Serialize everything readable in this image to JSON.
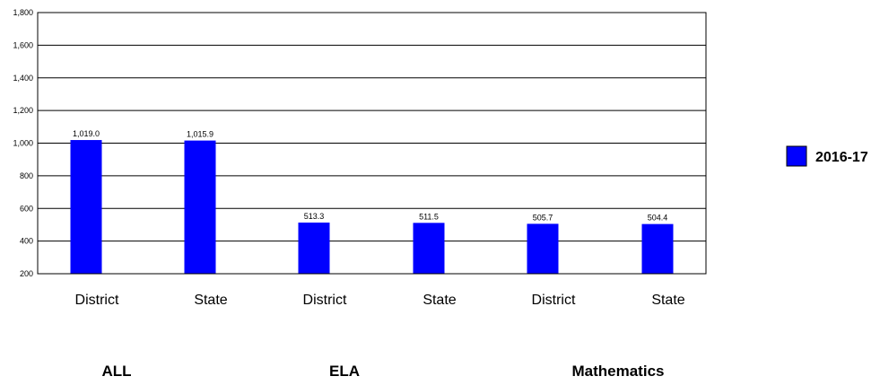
{
  "chart_data": {
    "type": "bar",
    "title": "",
    "xlabel": "",
    "ylabel": "",
    "ylim": [
      200,
      1800
    ],
    "yticks": [
      200,
      400,
      600,
      800,
      1000,
      1200,
      1400,
      1600,
      1800
    ],
    "ytick_labels": [
      "200",
      "400",
      "600",
      "800",
      "1,000",
      "1,200",
      "1,400",
      "1,600",
      "1,800"
    ],
    "grid": "horizontal",
    "legend_position": "right",
    "groups": [
      "ALL",
      "ELA",
      "Mathematics"
    ],
    "categories": [
      "District",
      "State",
      "District",
      "State",
      "District",
      "State"
    ],
    "category_group": [
      0,
      0,
      1,
      1,
      2,
      2
    ],
    "series": [
      {
        "name": "2016-17",
        "color": "#0000ff",
        "values": [
          1019.0,
          1015.9,
          513.3,
          511.5,
          505.7,
          504.4
        ],
        "labels": [
          "1,019.0",
          "1,015.9",
          "513.3",
          "511.5",
          "505.7",
          "504.4"
        ]
      }
    ]
  }
}
